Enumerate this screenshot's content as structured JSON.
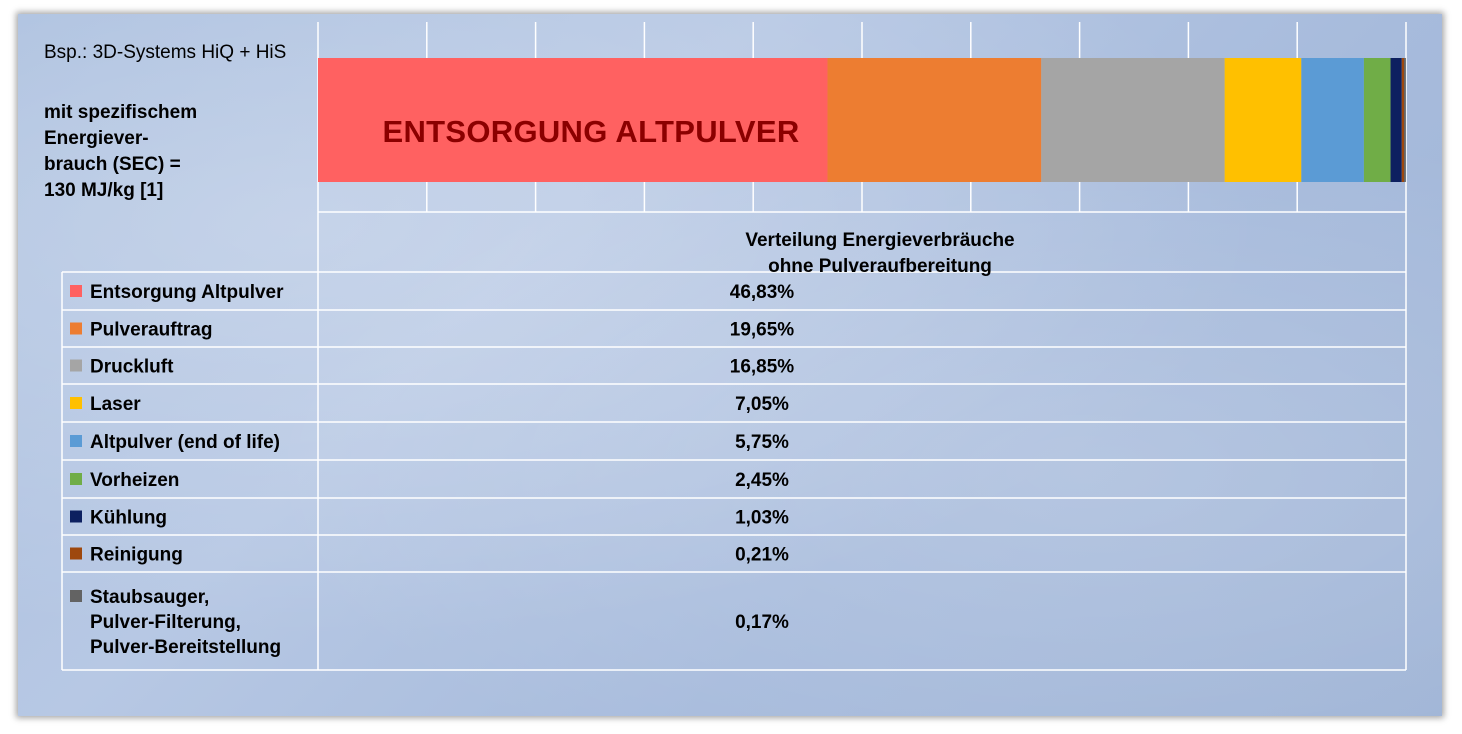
{
  "source_label": "Bsp.: 3D-Systems HiQ + HiS",
  "sec_label": "mit spezifischem\nEnergiever-\nbrauch (SEC) =\n130 MJ/kg [1]",
  "chart_data": {
    "type": "bar",
    "orientation": "horizontal-stacked",
    "title": "",
    "bar_label": "ENTSORGUNG ALTPULVER",
    "table_title": "Verteilung Energieverbräuche\nohne Pulveraufbereitung",
    "xlim": [
      0,
      100
    ],
    "grid": true,
    "series": [
      {
        "name": "Entsorgung Altpulver",
        "value": 46.83,
        "display": "46,83%",
        "color": "#ff6161"
      },
      {
        "name": "Pulverauftrag",
        "value": 19.65,
        "display": "19,65%",
        "color": "#ed7d31"
      },
      {
        "name": "Druckluft",
        "value": 16.85,
        "display": "16,85%",
        "color": "#a5a5a5"
      },
      {
        "name": "Laser",
        "value": 7.05,
        "display": "7,05%",
        "color": "#ffc000"
      },
      {
        "name": "Altpulver (end of life)",
        "value": 5.75,
        "display": "5,75%",
        "color": "#5b9bd5"
      },
      {
        "name": "Vorheizen",
        "value": 2.45,
        "display": "2,45%",
        "color": "#70ad47"
      },
      {
        "name": "Kühlung",
        "value": 1.03,
        "display": "1,03%",
        "color": "#0d2060"
      },
      {
        "name": "Reinigung",
        "value": 0.21,
        "display": "0,21%",
        "color": "#9e480e"
      },
      {
        "name": "Staubsauger,\nPulver-Filterung,\nPulver-Bereitstellung",
        "value": 0.17,
        "display": "0,17%",
        "color": "#636363"
      }
    ]
  }
}
